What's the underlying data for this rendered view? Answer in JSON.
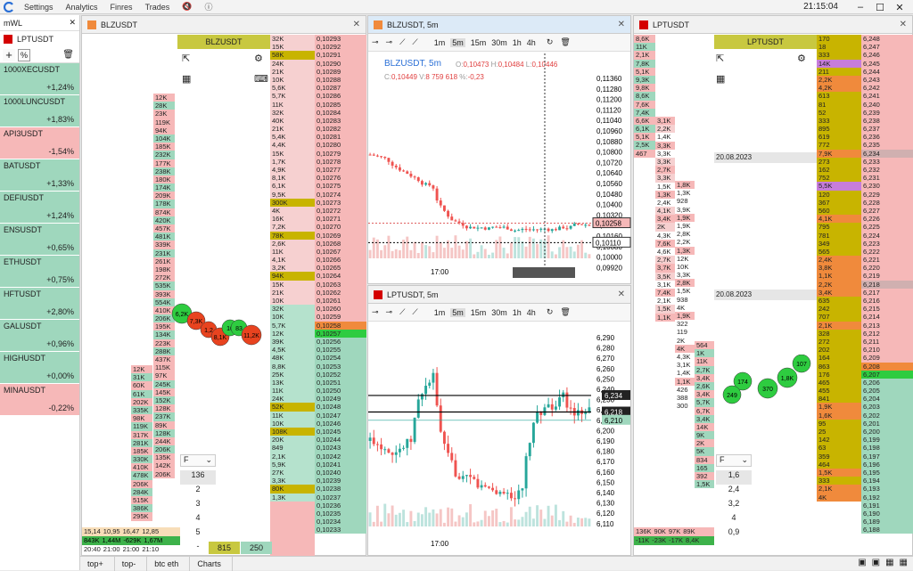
{
  "menu": {
    "items": [
      "Settings",
      "Analytics",
      "Finres",
      "Trades"
    ],
    "clock": "21:15:04"
  },
  "watchlist": {
    "title": "mWL",
    "selected": "LPTUSDT",
    "items": [
      {
        "sym": "1000XECUSDT",
        "chg": "+1,24%",
        "kind": "pos"
      },
      {
        "sym": "1000LUNCUSDT",
        "chg": "+1,83%",
        "kind": "pos"
      },
      {
        "sym": "API3USDT",
        "chg": "-1,54%",
        "kind": "neg"
      },
      {
        "sym": "BATUSDT",
        "chg": "+1,33%",
        "kind": "pos"
      },
      {
        "sym": "DEFIUSDT",
        "chg": "+1,24%",
        "kind": "pos"
      },
      {
        "sym": "ENSUSDT",
        "chg": "+0,65%",
        "kind": "pos"
      },
      {
        "sym": "ETHUSDT",
        "chg": "+0,75%",
        "kind": "pos"
      },
      {
        "sym": "HFTUSDT",
        "chg": "+2,80%",
        "kind": "pos"
      },
      {
        "sym": "GALUSDT",
        "chg": "+0,96%",
        "kind": "pos"
      },
      {
        "sym": "HIGHUSDT",
        "chg": "+0,00%",
        "kind": "zero"
      },
      {
        "sym": "MINAUSDT",
        "chg": "-0,22%",
        "kind": "neg"
      }
    ]
  },
  "left_panel": {
    "tab": "BLZUSDT",
    "header": "BLZUSDT",
    "bottom_vals": [
      "15,14",
      "10,95",
      "16,47",
      "12,85"
    ],
    "bottom_vals2": [
      "843K",
      "1,44M",
      "-629K",
      "1,67M"
    ],
    "times": [
      "20:40",
      "21:00",
      "21:00",
      "21:10"
    ],
    "footer_a": "815",
    "footer_b": "250",
    "dropdown": "F",
    "dd_options": [
      "136",
      "2",
      "3",
      "4",
      "5",
      "-"
    ],
    "mid_vols": [
      "12K",
      "28K",
      "23K",
      "119K",
      "94K",
      "104K",
      "185K",
      "232K",
      "177K",
      "238K",
      "180K",
      "174K",
      "209K",
      "178K",
      "874K",
      "420K",
      "457K",
      "481K",
      "339K",
      "231K",
      "261K",
      "198K",
      "272K",
      "535K",
      "393K",
      "554K",
      "410K",
      "206K",
      "195K",
      "134K",
      "223K",
      "288K",
      "437K",
      "115K",
      "97K",
      "245K",
      "145K",
      "152K",
      "128K",
      "237K",
      "89K",
      "128K",
      "244K",
      "206K",
      "135K",
      "142K",
      "206K"
    ],
    "mid_vols2": [
      "12K",
      "31K",
      "60K",
      "61K",
      "202K",
      "335K",
      "98K",
      "119K",
      "317K",
      "281K",
      "185K",
      "330K",
      "410K",
      "478K",
      "206K",
      "284K",
      "515K",
      "386K",
      "295K"
    ],
    "book_sizes": [
      "32K",
      "15K",
      "58K",
      "24K",
      "21K",
      "10K",
      "5,6K",
      "5,7K",
      "11K",
      "32K",
      "40K",
      "21K",
      "5,4K",
      "4,4K",
      "15K",
      "1,7K",
      "4,9K",
      "8,1K",
      "6,1K",
      "9,5K",
      "300K",
      "4K",
      "16K",
      "7,2K",
      "78K",
      "2,6K",
      "11K",
      "4,1K",
      "3,2K",
      "94K",
      "15K",
      "21K",
      "10K",
      "32K",
      "10K",
      "5,7K",
      "12K",
      "39K",
      "4,5K",
      "48K",
      "8,8K",
      "25K",
      "13K",
      "11K",
      "24K",
      "52K",
      "11K",
      "10K",
      "108K",
      "20K",
      "849",
      "2,1K",
      "5,9K",
      "27K",
      "3,3K",
      "80K",
      "1,3K"
    ],
    "book_prices": [
      "0,10293",
      "0,10292",
      "0,10291",
      "0,10290",
      "0,10289",
      "0,10288",
      "0,10287",
      "0,10286",
      "0,10285",
      "0,10284",
      "0,10283",
      "0,10282",
      "0,10281",
      "0,10280",
      "0,10279",
      "0,10278",
      "0,10277",
      "0,10276",
      "0,10275",
      "0,10274",
      "0,10273",
      "0,10272",
      "0,10271",
      "0,10270",
      "0,10269",
      "0,10268",
      "0,10267",
      "0,10266",
      "0,10265",
      "0,10264",
      "0,10263",
      "0,10262",
      "0,10261",
      "0,10260",
      "0,10259",
      "0,10258",
      "0,10257",
      "0,10256",
      "0,10255",
      "0,10254",
      "0,10253",
      "0,10252",
      "0,10251",
      "0,10250",
      "0,10249",
      "0,10248",
      "0,10247",
      "0,10246",
      "0,10245",
      "0,10244",
      "0,10243",
      "0,10242",
      "0,10241",
      "0,10240",
      "0,10239",
      "0,10238",
      "0,10237",
      "0,10236",
      "0,10235",
      "0,10234",
      "0,10233"
    ],
    "bubbles": [
      "6,2K",
      "7,3K",
      "1,2",
      "8,1K",
      "10",
      "83",
      "11,2K"
    ]
  },
  "chart_top": {
    "tab": "BLZUSDT, 5m",
    "tf": [
      "1m",
      "5m",
      "15m",
      "30m",
      "1h",
      "4h"
    ],
    "legend_sym": "BLZUSDT, 5m",
    "o": "0,10473",
    "h": "0,10484",
    "l": "0,10446",
    "c": "0,10449",
    "v": "8 759 618",
    "pct": "-0,23",
    "ylabels": [
      "0,11360",
      "0,11280",
      "0,11200",
      "0,11120",
      "0,11040",
      "0,10960",
      "0,10880",
      "0,10800",
      "0,10720",
      "0,10640",
      "0,10560",
      "0,10480",
      "0,10400",
      "0,10320",
      "0,10240",
      "0,10160",
      "0,10080",
      "0,10000",
      "0,09920"
    ],
    "last": "0,10258",
    "cross": "0,10110",
    "xlabel": "17:00"
  },
  "chart_bottom": {
    "tab": "LPTUSDT, 5m",
    "tf": [
      "1m",
      "5m",
      "15m",
      "30m",
      "1h",
      "4h"
    ],
    "ylabels": [
      "6,290",
      "6,280",
      "6,270",
      "6,260",
      "6,250",
      "6,240",
      "6,230",
      "6,220",
      "6,210",
      "6,200",
      "6,190",
      "6,180",
      "6,170",
      "6,160",
      "6,150",
      "6,140",
      "6,130",
      "6,120",
      "6,110"
    ],
    "l1": "6,234",
    "l2": "6,218",
    "l3": "6,210",
    "xlabel": "17:00"
  },
  "right_panel": {
    "tab": "LPTUSDT",
    "header": "LPTUSDT",
    "date1": "20.08.2023",
    "date2": "20.08.2023",
    "vols_a": [
      "8,6K",
      "11K",
      "2,1K",
      "7,8K",
      "5,1K",
      "9,3K",
      "9,8K",
      "8,6K",
      "7,6K",
      "7,4K",
      "6,6K",
      "6,1K",
      "5,1K",
      "2,5K",
      "467"
    ],
    "vols_b": [
      "3,1K",
      "2,2K",
      "1,4K",
      "3,3K",
      "3,3K",
      "3,3K",
      "2,7K",
      "3,3K",
      "1,5K",
      "1,3K",
      "2,4K",
      "4,1K",
      "3,4K",
      "2K",
      "4,3K",
      "7,6K",
      "4,6K",
      "2,7K",
      "3,7K",
      "3,5K",
      "3,1K",
      "7,4K",
      "2,1K",
      "1,5K",
      "1,1K"
    ],
    "vols_c": [
      "1,8K",
      "1,3K",
      "928",
      "3,9K",
      "1,9K",
      "1,9K",
      "2,8K",
      "2,2K",
      "1,3K",
      "12K",
      "10K",
      "3,3K",
      "2,8K",
      "1,5K",
      "938",
      "4K",
      "1,9K",
      "322",
      "119",
      "2K",
      "4K",
      "4,3K",
      "3,1K",
      "1,4K",
      "1,1K",
      "426",
      "388",
      "300"
    ],
    "vols_d": [
      "564",
      "1K",
      "11K",
      "2,7K",
      "3,4K",
      "2,6K",
      "3,4K",
      "5,7K",
      "6,7K",
      "3,4K",
      "14K",
      "9K",
      "2K",
      "5K",
      "834",
      "165",
      "392",
      "1,5K"
    ],
    "bottom": [
      "136K",
      "90K",
      "97K",
      "89K"
    ],
    "bottom2": [
      "-11K",
      "-23K",
      "-17K",
      "8,4K"
    ],
    "dropdown": "F",
    "dd_options": [
      "1,6",
      "2,4",
      "3,2",
      "4",
      "0,9"
    ],
    "book_sizes": [
      "170",
      "18",
      "333",
      "14K",
      "211",
      "2,2K",
      "4,2K",
      "613",
      "81",
      "52",
      "333",
      "895",
      "619",
      "772",
      "7,9K",
      "273",
      "162",
      "752",
      "5,5K",
      "120",
      "367",
      "560",
      "4,1K",
      "795",
      "781",
      "349",
      "565",
      "2,4K",
      "3,8K",
      "1,1K",
      "2,2K",
      "3,4K",
      "635",
      "242",
      "707",
      "2,1K",
      "328",
      "272",
      "202",
      "164",
      "863",
      "176",
      "465",
      "455",
      "841",
      "1,9K",
      "1,6K",
      "95",
      "25",
      "142",
      "63",
      "359",
      "464",
      "1,5K",
      "333",
      "2,1K",
      "4K"
    ],
    "book_prices": [
      "6,248",
      "6,247",
      "6,246",
      "6,245",
      "6,244",
      "6,243",
      "6,242",
      "6,241",
      "6,240",
      "6,239",
      "6,238",
      "6,237",
      "6,236",
      "6,235",
      "6,234",
      "6,233",
      "6,232",
      "6,231",
      "6,230",
      "6,229",
      "6,228",
      "6,227",
      "6,226",
      "6,225",
      "6,224",
      "6,223",
      "6,222",
      "6,221",
      "6,220",
      "6,219",
      "6,218",
      "6,217",
      "6,216",
      "6,215",
      "6,214",
      "6,213",
      "6,212",
      "6,211",
      "6,210",
      "6,209",
      "6,208",
      "6,207",
      "6,206",
      "6,205",
      "6,204",
      "6,203",
      "6,202",
      "6,201",
      "6,200",
      "6,199",
      "6,198",
      "6,197",
      "6,196",
      "6,195",
      "6,194",
      "6,193",
      "6,192",
      "6,191",
      "6,190",
      "6,189",
      "6,188"
    ],
    "bubbles": [
      "174",
      "249",
      "370",
      "1,8K",
      "107"
    ]
  },
  "bottom_tabs": [
    "top+",
    "top-",
    "btc eth",
    "Charts"
  ],
  "colors": {
    "bid": "#9fd7bd",
    "ask": "#f6b8b8",
    "yellow": "#c8b400",
    "orange": "#f08a3c",
    "green": "#2ecc40",
    "red": "#e8431f"
  }
}
